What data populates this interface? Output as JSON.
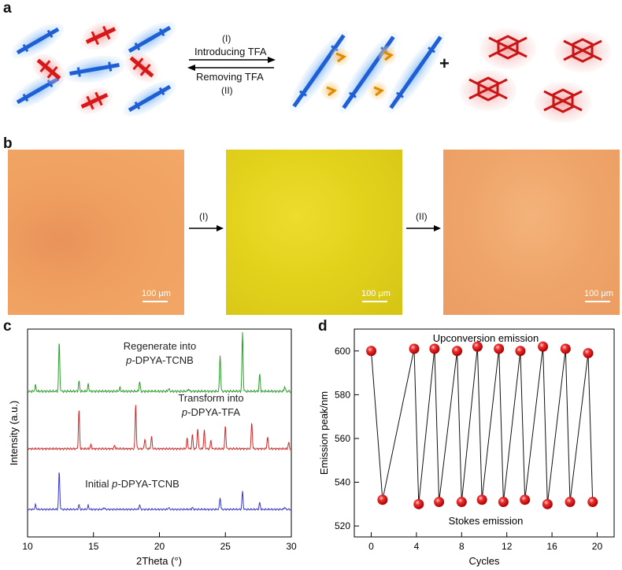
{
  "panels": {
    "a": "a",
    "b": "b",
    "c": "c",
    "d": "d"
  },
  "panel_a": {
    "step1_label": "(I)",
    "step1_text": "Introducing TFA",
    "step2_text": "Removing TFA",
    "step2_label": "(II)",
    "plus": "+"
  },
  "panel_b": {
    "arrow1_label": "(I)",
    "arrow2_label": "(II)",
    "scale_bar": "100 μm",
    "colors": {
      "initial": "#EFA060",
      "transformed": "#E3D21C",
      "regenerated": "#EFA56A"
    }
  },
  "chart_data": [
    {
      "type": "line",
      "panel": "c",
      "xlabel": "2Theta (°)",
      "ylabel": "Intensity (a.u.)",
      "xlim": [
        10,
        30
      ],
      "xticks": [
        10,
        15,
        20,
        25,
        30
      ],
      "series": [
        {
          "name": "Regenerate into p-DPYA-TCNB",
          "label_line1": "Regenerate into",
          "label_line2_italic": "p-",
          "label_line2": "DPYA-TCNB",
          "color": "#2E9E2E",
          "peaks": [
            [
              10.6,
              0.12
            ],
            [
              12.4,
              1.0
            ],
            [
              13.9,
              0.2
            ],
            [
              14.6,
              0.14
            ],
            [
              17.0,
              0.07
            ],
            [
              18.5,
              0.2
            ],
            [
              20.7,
              0.06
            ],
            [
              22.2,
              0.05
            ],
            [
              24.6,
              0.75
            ],
            [
              26.3,
              1.2
            ],
            [
              27.6,
              0.35
            ],
            [
              29.5,
              0.1
            ]
          ]
        },
        {
          "name": "Transform into p-DPYA-TFA",
          "label_line1": "Transform into",
          "label_line2_italic": "p-",
          "label_line2": "DPYA-TFA",
          "color": "#D02A2A",
          "peaks": [
            [
              13.9,
              0.95
            ],
            [
              14.8,
              0.1
            ],
            [
              16.6,
              0.08
            ],
            [
              18.2,
              1.1
            ],
            [
              18.9,
              0.25
            ],
            [
              19.4,
              0.3
            ],
            [
              22.1,
              0.25
            ],
            [
              22.5,
              0.35
            ],
            [
              22.9,
              0.5
            ],
            [
              23.4,
              0.45
            ],
            [
              23.9,
              0.2
            ],
            [
              25.0,
              0.55
            ],
            [
              27.0,
              0.65
            ],
            [
              28.2,
              0.3
            ],
            [
              29.8,
              0.15
            ]
          ]
        },
        {
          "name": "Initial p-DPYA-TCNB",
          "label_line1_prefix": "Initial ",
          "label_line1_italic": "p-",
          "label_line1": "DPYA-TCNB",
          "color": "#3A3AC8",
          "peaks": [
            [
              10.6,
              0.12
            ],
            [
              12.4,
              1.0
            ],
            [
              13.9,
              0.12
            ],
            [
              14.6,
              0.1
            ],
            [
              15.8,
              0.05
            ],
            [
              18.5,
              0.12
            ],
            [
              20.7,
              0.05
            ],
            [
              22.5,
              0.05
            ],
            [
              24.6,
              0.32
            ],
            [
              26.3,
              0.48
            ],
            [
              27.6,
              0.18
            ],
            [
              29.5,
              0.06
            ]
          ]
        }
      ]
    },
    {
      "type": "line",
      "panel": "d",
      "xlabel": "Cycles",
      "ylabel": "Emission peak/nm",
      "xlim": [
        -1.5,
        21.5
      ],
      "ylim": [
        515,
        610
      ],
      "xticks": [
        0,
        4,
        8,
        12,
        16,
        20
      ],
      "yticks": [
        520,
        540,
        560,
        580,
        600
      ],
      "annotations": {
        "top": "Upconversion emission",
        "bottom": "Stokes emission"
      },
      "marker_color": "#E21E1E",
      "x": [
        0,
        1,
        3.8,
        4.2,
        5.6,
        6.0,
        7.6,
        8.0,
        9.4,
        9.8,
        11.3,
        11.7,
        13.2,
        13.6,
        15.2,
        15.6,
        17.2,
        17.6,
        19.2,
        19.6
      ],
      "y": [
        600,
        532,
        601,
        530,
        601,
        531,
        600,
        531,
        602,
        532,
        601,
        531,
        600,
        532,
        602,
        530,
        601,
        531,
        599,
        531
      ]
    }
  ]
}
